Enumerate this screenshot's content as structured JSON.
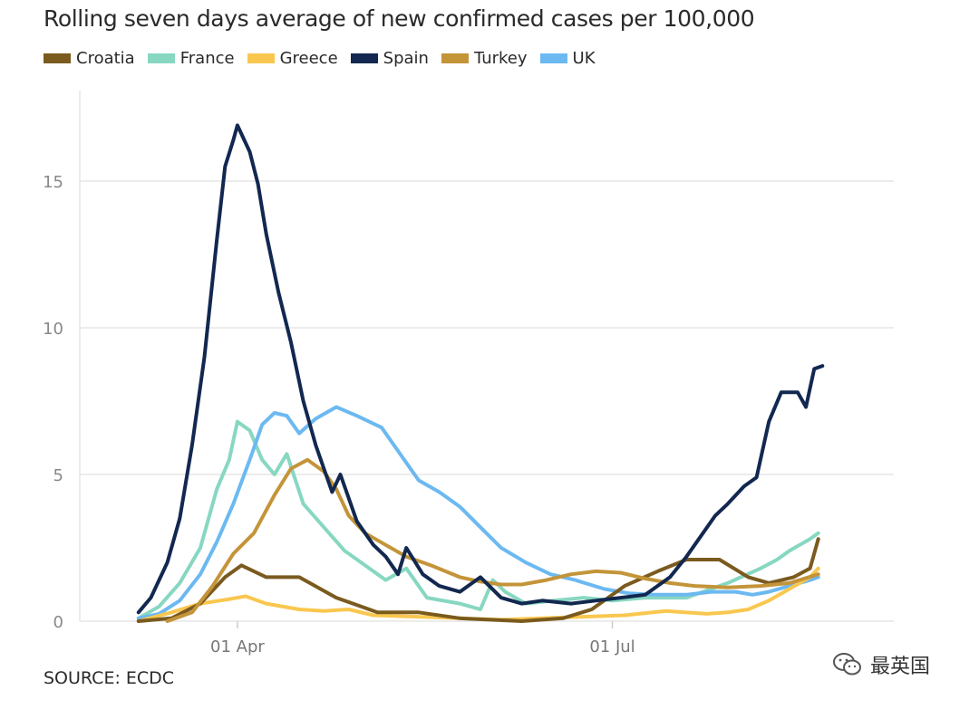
{
  "chart_data": {
    "type": "line",
    "title": "Rolling seven days average of new confirmed cases per 100,000",
    "xlabel": "",
    "ylabel": "",
    "ylim": [
      0,
      17.5
    ],
    "xlim": [
      0,
      195
    ],
    "yticks": [
      0,
      5,
      10,
      15
    ],
    "xticks": [
      {
        "x": 31,
        "label": "01 Apr"
      },
      {
        "x": 122,
        "label": "01 Jul"
      }
    ],
    "grid": "horizontal",
    "legend_position": "top-left",
    "series": [
      {
        "name": "Croatia",
        "color": "#7a5a1e",
        "points": [
          [
            7,
            0
          ],
          [
            15,
            0.1
          ],
          [
            22,
            0.6
          ],
          [
            28,
            1.5
          ],
          [
            32,
            1.9
          ],
          [
            38,
            1.5
          ],
          [
            46,
            1.5
          ],
          [
            55,
            0.8
          ],
          [
            65,
            0.3
          ],
          [
            75,
            0.3
          ],
          [
            85,
            0.1
          ],
          [
            100,
            0
          ],
          [
            110,
            0.1
          ],
          [
            117,
            0.4
          ],
          [
            125,
            1.2
          ],
          [
            133,
            1.7
          ],
          [
            140,
            2.1
          ],
          [
            148,
            2.1
          ],
          [
            155,
            1.5
          ],
          [
            160,
            1.3
          ],
          [
            166,
            1.5
          ],
          [
            170,
            1.8
          ],
          [
            172,
            2.8
          ]
        ]
      },
      {
        "name": "France",
        "color": "#87d7c1",
        "points": [
          [
            7,
            0.1
          ],
          [
            12,
            0.5
          ],
          [
            17,
            1.3
          ],
          [
            22,
            2.5
          ],
          [
            26,
            4.5
          ],
          [
            29,
            5.5
          ],
          [
            31,
            6.8
          ],
          [
            34,
            6.5
          ],
          [
            37,
            5.5
          ],
          [
            40,
            5.0
          ],
          [
            43,
            5.7
          ],
          [
            47,
            4.0
          ],
          [
            52,
            3.2
          ],
          [
            57,
            2.4
          ],
          [
            62,
            1.9
          ],
          [
            67,
            1.4
          ],
          [
            72,
            1.8
          ],
          [
            77,
            0.8
          ],
          [
            85,
            0.6
          ],
          [
            90,
            0.4
          ],
          [
            93,
            1.4
          ],
          [
            96,
            1.0
          ],
          [
            101,
            0.6
          ],
          [
            108,
            0.7
          ],
          [
            115,
            0.8
          ],
          [
            122,
            0.7
          ],
          [
            130,
            0.8
          ],
          [
            140,
            0.8
          ],
          [
            150,
            1.3
          ],
          [
            158,
            1.8
          ],
          [
            162,
            2.1
          ],
          [
            165,
            2.4
          ],
          [
            170,
            2.8
          ],
          [
            172,
            3.0
          ]
        ]
      },
      {
        "name": "Greece",
        "color": "#f9c74f",
        "points": [
          [
            7,
            0
          ],
          [
            15,
            0.3
          ],
          [
            22,
            0.6
          ],
          [
            29,
            0.75
          ],
          [
            33,
            0.85
          ],
          [
            38,
            0.6
          ],
          [
            46,
            0.4
          ],
          [
            52,
            0.35
          ],
          [
            58,
            0.4
          ],
          [
            64,
            0.2
          ],
          [
            75,
            0.15
          ],
          [
            85,
            0.1
          ],
          [
            95,
            0.05
          ],
          [
            105,
            0.1
          ],
          [
            115,
            0.15
          ],
          [
            125,
            0.2
          ],
          [
            135,
            0.35
          ],
          [
            145,
            0.25
          ],
          [
            150,
            0.3
          ],
          [
            155,
            0.4
          ],
          [
            160,
            0.7
          ],
          [
            165,
            1.1
          ],
          [
            170,
            1.5
          ],
          [
            172,
            1.8
          ]
        ]
      },
      {
        "name": "Spain",
        "color": "#122850",
        "points": [
          [
            7,
            0.3
          ],
          [
            10,
            0.8
          ],
          [
            14,
            2.0
          ],
          [
            17,
            3.5
          ],
          [
            20,
            6.0
          ],
          [
            23,
            9.0
          ],
          [
            26,
            13.0
          ],
          [
            28,
            15.5
          ],
          [
            30,
            16.4
          ],
          [
            31,
            16.9
          ],
          [
            34,
            16.0
          ],
          [
            36,
            14.9
          ],
          [
            38,
            13.2
          ],
          [
            41,
            11.2
          ],
          [
            44,
            9.5
          ],
          [
            47,
            7.5
          ],
          [
            50,
            6.0
          ],
          [
            52,
            5.2
          ],
          [
            54,
            4.4
          ],
          [
            56,
            5.0
          ],
          [
            60,
            3.4
          ],
          [
            64,
            2.6
          ],
          [
            67,
            2.2
          ],
          [
            70,
            1.6
          ],
          [
            72,
            2.5
          ],
          [
            76,
            1.6
          ],
          [
            80,
            1.2
          ],
          [
            85,
            1.0
          ],
          [
            90,
            1.5
          ],
          [
            95,
            0.8
          ],
          [
            100,
            0.6
          ],
          [
            105,
            0.7
          ],
          [
            112,
            0.6
          ],
          [
            118,
            0.7
          ],
          [
            124,
            0.8
          ],
          [
            130,
            0.9
          ],
          [
            136,
            1.5
          ],
          [
            140,
            2.2
          ],
          [
            143,
            2.8
          ],
          [
            147,
            3.6
          ],
          [
            150,
            4.0
          ],
          [
            154,
            4.6
          ],
          [
            157,
            4.9
          ],
          [
            160,
            6.8
          ],
          [
            163,
            7.8
          ],
          [
            167,
            7.8
          ],
          [
            169,
            7.3
          ],
          [
            171,
            8.6
          ],
          [
            173,
            8.7
          ]
        ]
      },
      {
        "name": "Turkey",
        "color": "#c49439",
        "points": [
          [
            14,
            0
          ],
          [
            20,
            0.3
          ],
          [
            25,
            1.2
          ],
          [
            30,
            2.3
          ],
          [
            35,
            3.0
          ],
          [
            40,
            4.3
          ],
          [
            44,
            5.2
          ],
          [
            48,
            5.5
          ],
          [
            52,
            5.1
          ],
          [
            55,
            4.5
          ],
          [
            58,
            3.6
          ],
          [
            62,
            3.0
          ],
          [
            67,
            2.6
          ],
          [
            72,
            2.2
          ],
          [
            78,
            1.9
          ],
          [
            85,
            1.5
          ],
          [
            90,
            1.35
          ],
          [
            95,
            1.25
          ],
          [
            100,
            1.25
          ],
          [
            106,
            1.4
          ],
          [
            112,
            1.6
          ],
          [
            118,
            1.7
          ],
          [
            124,
            1.65
          ],
          [
            130,
            1.45
          ],
          [
            136,
            1.3
          ],
          [
            142,
            1.2
          ],
          [
            150,
            1.15
          ],
          [
            158,
            1.2
          ],
          [
            165,
            1.3
          ],
          [
            172,
            1.6
          ]
        ]
      },
      {
        "name": "UK",
        "color": "#6cb9f1",
        "points": [
          [
            7,
            0.1
          ],
          [
            12,
            0.25
          ],
          [
            17,
            0.7
          ],
          [
            22,
            1.6
          ],
          [
            26,
            2.7
          ],
          [
            30,
            4.0
          ],
          [
            34,
            5.5
          ],
          [
            37,
            6.7
          ],
          [
            40,
            7.1
          ],
          [
            43,
            7.0
          ],
          [
            46,
            6.4
          ],
          [
            50,
            6.9
          ],
          [
            55,
            7.3
          ],
          [
            60,
            7.0
          ],
          [
            66,
            6.6
          ],
          [
            71,
            5.6
          ],
          [
            75,
            4.8
          ],
          [
            80,
            4.4
          ],
          [
            85,
            3.9
          ],
          [
            90,
            3.2
          ],
          [
            95,
            2.5
          ],
          [
            101,
            2.0
          ],
          [
            107,
            1.6
          ],
          [
            113,
            1.4
          ],
          [
            120,
            1.1
          ],
          [
            126,
            0.95
          ],
          [
            132,
            0.9
          ],
          [
            140,
            0.9
          ],
          [
            146,
            1.0
          ],
          [
            152,
            1.0
          ],
          [
            156,
            0.9
          ],
          [
            160,
            1.0
          ],
          [
            165,
            1.2
          ],
          [
            170,
            1.4
          ],
          [
            172,
            1.5
          ]
        ]
      }
    ]
  },
  "source": "SOURCE: ECDC",
  "watermark": "最英国"
}
